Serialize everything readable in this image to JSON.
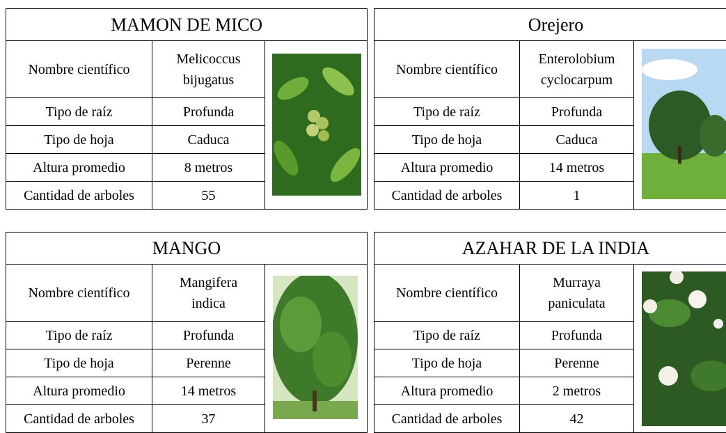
{
  "cards": [
    {
      "title": "MAMON DE MICO",
      "rows": [
        {
          "label": "Nombre científico",
          "value": [
            "Melicoccus",
            "bijugatus"
          ]
        },
        {
          "label": "Tipo de raíz",
          "value": [
            "Profunda"
          ]
        },
        {
          "label": "Tipo de hoja",
          "value": [
            "Caduca"
          ]
        },
        {
          "label": "Altura promedio",
          "value": [
            "8 metros"
          ]
        },
        {
          "label": "Cantidad de arboles",
          "value": [
            "55"
          ]
        }
      ]
    },
    {
      "title": "Orejero",
      "rows": [
        {
          "label": "Nombre científico",
          "value": [
            "Enterolobium",
            "cyclocarpum"
          ]
        },
        {
          "label": "Tipo de raíz",
          "value": [
            "Profunda"
          ]
        },
        {
          "label": "Tipo de hoja",
          "value": [
            "Caduca"
          ]
        },
        {
          "label": "Altura promedio",
          "value": [
            "14 metros"
          ]
        },
        {
          "label": "Cantidad de arboles",
          "value": [
            "1"
          ]
        }
      ]
    },
    {
      "title": "MANGO",
      "rows": [
        {
          "label": "Nombre científico",
          "value": [
            "Mangifera",
            "indica"
          ]
        },
        {
          "label": "Tipo de raíz",
          "value": [
            "Profunda"
          ]
        },
        {
          "label": "Tipo de hoja",
          "value": [
            "Perenne"
          ]
        },
        {
          "label": "Altura promedio",
          "value": [
            "14 metros"
          ]
        },
        {
          "label": "Cantidad de arboles",
          "value": [
            "37"
          ]
        }
      ]
    },
    {
      "title": "AZAHAR DE LA INDIA",
      "rows": [
        {
          "label": "Nombre científico",
          "value": [
            "Murraya",
            "paniculata"
          ]
        },
        {
          "label": "Tipo de raíz",
          "value": [
            "Profunda"
          ]
        },
        {
          "label": "Tipo de hoja",
          "value": [
            "Perenne"
          ]
        },
        {
          "label": "Altura promedio",
          "value": [
            "2 metros"
          ]
        },
        {
          "label": "Cantidad de arboles",
          "value": [
            "42"
          ]
        }
      ]
    }
  ]
}
